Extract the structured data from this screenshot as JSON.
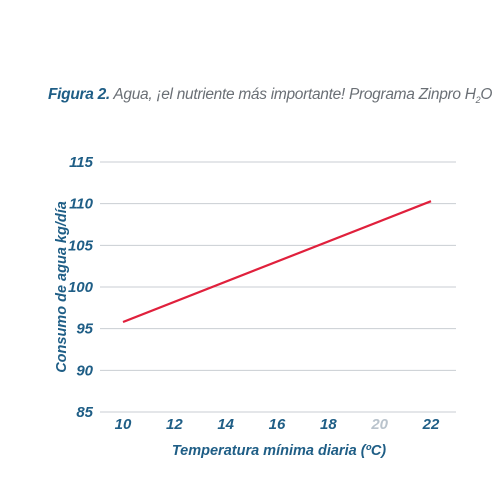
{
  "caption": {
    "figure_label": "Figura 2.",
    "text": "Agua, ¡el nutriente más importante! Programa Zinpro H",
    "subscript": "2",
    "suffix": "O"
  },
  "chart_data": {
    "type": "line",
    "title": "",
    "xlabel": "Temperatura mínima diaria (ºC)",
    "ylabel": "Consumo de agua kg/día",
    "x_ticks": [
      10,
      12,
      14,
      16,
      18,
      20,
      22
    ],
    "y_ticks": [
      85,
      90,
      95,
      100,
      105,
      110,
      115
    ],
    "xlim": [
      10,
      22
    ],
    "ylim": [
      85,
      115
    ],
    "grid": "horizontal",
    "series": [
      {
        "color": "#e0203c",
        "x": [
          10,
          22
        ],
        "y": [
          95.8,
          110.3
        ]
      }
    ],
    "colors": {
      "text": "#1f5e86",
      "grid": "#c9ced3",
      "muted_tick": "#b9c3cc"
    }
  }
}
